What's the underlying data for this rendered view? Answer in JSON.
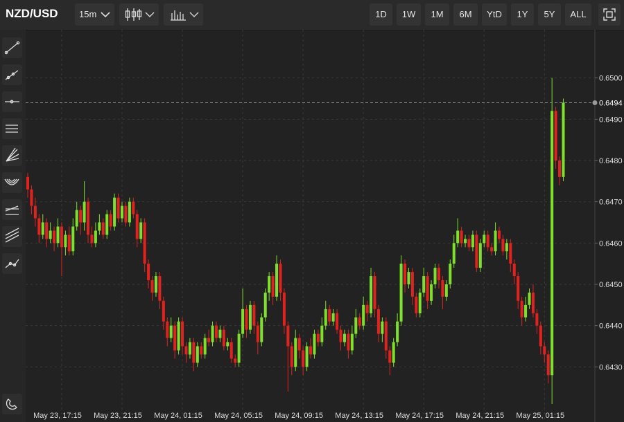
{
  "toolbar": {
    "symbol": "NZD/USD",
    "interval": "15m",
    "ranges": [
      "1D",
      "1W",
      "1M",
      "6M",
      "YtD",
      "1Y",
      "5Y",
      "ALL"
    ]
  },
  "chart_data": {
    "type": "candlestick",
    "up_color": "#7ee02c",
    "down_color": "#e0231f",
    "grid": true,
    "ylim": [
      0.642,
      0.651
    ],
    "yticks": [
      {
        "value": 0.643,
        "label": "0.6430"
      },
      {
        "value": 0.644,
        "label": "0.6440"
      },
      {
        "value": 0.645,
        "label": "0.6450"
      },
      {
        "value": 0.646,
        "label": "0.6460"
      },
      {
        "value": 0.647,
        "label": "0.6470"
      },
      {
        "value": 0.648,
        "label": "0.6480"
      },
      {
        "value": 0.649,
        "label": "0.6490"
      },
      {
        "value": 0.65,
        "label": "0.6500"
      }
    ],
    "last_price": 0.6494,
    "categories": [
      null,
      null,
      null,
      null,
      null,
      null,
      null,
      null,
      null,
      "May 23, 17:15",
      null,
      null,
      null,
      null,
      null,
      null,
      null,
      null,
      null,
      null,
      null,
      null,
      null,
      null,
      null,
      "May 23, 21:15",
      null,
      null,
      null,
      null,
      null,
      null,
      null,
      null,
      null,
      null,
      null,
      null,
      null,
      null,
      null,
      "May 24, 01:15",
      null,
      null,
      null,
      null,
      null,
      null,
      null,
      null,
      null,
      null,
      null,
      null,
      null,
      null,
      null,
      "May 24, 05:15",
      null,
      null,
      null,
      null,
      null,
      null,
      null,
      null,
      null,
      null,
      null,
      null,
      null,
      null,
      null,
      "May 24, 09:15",
      null,
      null,
      null,
      null,
      null,
      null,
      null,
      null,
      null,
      null,
      null,
      null,
      null,
      null,
      null,
      "May 24, 13:15",
      null,
      null,
      null,
      null,
      null,
      null,
      null,
      null,
      null,
      null,
      null,
      null,
      null,
      null,
      null,
      "May 24, 17:15",
      null,
      null,
      null,
      null,
      null,
      null,
      null,
      null,
      null,
      null,
      null,
      null,
      null,
      null,
      null,
      "May 24, 21:15",
      null,
      null,
      null,
      null,
      null,
      null,
      null,
      null,
      null,
      null,
      null,
      null,
      null,
      null,
      null,
      "May 25, 01:15",
      null,
      null,
      null,
      null,
      null
    ],
    "candles": [
      [
        0.6476,
        0.6477,
        0.6471,
        0.6473
      ],
      [
        0.6473,
        0.6474,
        0.6467,
        0.6469
      ],
      [
        0.6469,
        0.6471,
        0.6464,
        0.6466
      ],
      [
        0.6466,
        0.6467,
        0.646,
        0.6462
      ],
      [
        0.6462,
        0.6467,
        0.6461,
        0.6465
      ],
      [
        0.6465,
        0.6466,
        0.6459,
        0.6461
      ],
      [
        0.6461,
        0.6465,
        0.646,
        0.6463
      ],
      [
        0.6463,
        0.6464,
        0.6458,
        0.646
      ],
      [
        0.646,
        0.6466,
        0.6459,
        0.6464
      ],
      [
        0.6464,
        0.6465,
        0.6452,
        0.6459
      ],
      [
        0.6459,
        0.6463,
        0.6457,
        0.6462
      ],
      [
        0.6462,
        0.6464,
        0.6457,
        0.6458
      ],
      [
        0.6458,
        0.6466,
        0.6457,
        0.6464
      ],
      [
        0.6464,
        0.647,
        0.6463,
        0.6468
      ],
      [
        0.6468,
        0.6469,
        0.6462,
        0.6465
      ],
      [
        0.6465,
        0.6475,
        0.6463,
        0.647
      ],
      [
        0.647,
        0.6471,
        0.646,
        0.6462
      ],
      [
        0.6462,
        0.6464,
        0.6459,
        0.646
      ],
      [
        0.646,
        0.6465,
        0.6459,
        0.6463
      ],
      [
        0.6463,
        0.6467,
        0.6462,
        0.6465
      ],
      [
        0.6465,
        0.6466,
        0.6461,
        0.6462
      ],
      [
        0.6462,
        0.6468,
        0.6461,
        0.6467
      ],
      [
        0.6467,
        0.6468,
        0.6463,
        0.6464
      ],
      [
        0.6464,
        0.6472,
        0.6463,
        0.6471
      ],
      [
        0.6471,
        0.6472,
        0.6465,
        0.6466
      ],
      [
        0.6466,
        0.647,
        0.6465,
        0.6469
      ],
      [
        0.6469,
        0.647,
        0.6464,
        0.6465
      ],
      [
        0.6465,
        0.6471,
        0.6464,
        0.647
      ],
      [
        0.647,
        0.6471,
        0.6466,
        0.6467
      ],
      [
        0.6467,
        0.6468,
        0.6459,
        0.6461
      ],
      [
        0.6461,
        0.6466,
        0.646,
        0.6465
      ],
      [
        0.6465,
        0.6466,
        0.6453,
        0.6455
      ],
      [
        0.6455,
        0.6456,
        0.6449,
        0.6451
      ],
      [
        0.6451,
        0.6452,
        0.6446,
        0.6448
      ],
      [
        0.6448,
        0.6453,
        0.6447,
        0.6452
      ],
      [
        0.6452,
        0.6453,
        0.6444,
        0.6446
      ],
      [
        0.6446,
        0.6447,
        0.6439,
        0.6441
      ],
      [
        0.6441,
        0.6442,
        0.6435,
        0.6437
      ],
      [
        0.6437,
        0.6442,
        0.6436,
        0.644
      ],
      [
        0.644,
        0.6441,
        0.6432,
        0.6434
      ],
      [
        0.6434,
        0.6442,
        0.6433,
        0.6441
      ],
      [
        0.6441,
        0.6442,
        0.6433,
        0.6435
      ],
      [
        0.6435,
        0.6436,
        0.6431,
        0.6433
      ],
      [
        0.6433,
        0.6437,
        0.6432,
        0.6436
      ],
      [
        0.6436,
        0.6437,
        0.6429,
        0.6431
      ],
      [
        0.6431,
        0.6436,
        0.643,
        0.6435
      ],
      [
        0.6435,
        0.6436,
        0.6432,
        0.6433
      ],
      [
        0.6433,
        0.6438,
        0.6432,
        0.6437
      ],
      [
        0.6437,
        0.6439,
        0.6435,
        0.6436
      ],
      [
        0.6436,
        0.6441,
        0.6435,
        0.644
      ],
      [
        0.644,
        0.6441,
        0.6436,
        0.6437
      ],
      [
        0.6437,
        0.644,
        0.6436,
        0.6439
      ],
      [
        0.6439,
        0.644,
        0.6434,
        0.6435
      ],
      [
        0.6435,
        0.6437,
        0.6434,
        0.6436
      ],
      [
        0.6436,
        0.6437,
        0.6431,
        0.6432
      ],
      [
        0.6432,
        0.6433,
        0.643,
        0.6431
      ],
      [
        0.6431,
        0.6439,
        0.643,
        0.6438
      ],
      [
        0.6438,
        0.6449,
        0.6437,
        0.6444
      ],
      [
        0.6444,
        0.6445,
        0.6437,
        0.6439
      ],
      [
        0.6439,
        0.6446,
        0.6438,
        0.6445
      ],
      [
        0.6445,
        0.6446,
        0.6438,
        0.644
      ],
      [
        0.644,
        0.6441,
        0.6433,
        0.6436
      ],
      [
        0.6436,
        0.6443,
        0.6435,
        0.6442
      ],
      [
        0.6442,
        0.6449,
        0.6441,
        0.6448
      ],
      [
        0.6448,
        0.6453,
        0.6446,
        0.6452
      ],
      [
        0.6452,
        0.6453,
        0.6445,
        0.6447
      ],
      [
        0.6447,
        0.6457,
        0.6446,
        0.6455
      ],
      [
        0.6455,
        0.6456,
        0.6446,
        0.6448
      ],
      [
        0.6448,
        0.6449,
        0.6438,
        0.644
      ],
      [
        0.644,
        0.6441,
        0.6424,
        0.6435
      ],
      [
        0.6435,
        0.6436,
        0.6428,
        0.643
      ],
      [
        0.643,
        0.6439,
        0.6429,
        0.6437
      ],
      [
        0.6437,
        0.6438,
        0.6432,
        0.6434
      ],
      [
        0.6434,
        0.6435,
        0.6428,
        0.643
      ],
      [
        0.643,
        0.6436,
        0.6429,
        0.6435
      ],
      [
        0.6435,
        0.6437,
        0.6432,
        0.6433
      ],
      [
        0.6433,
        0.6439,
        0.6432,
        0.6438
      ],
      [
        0.6438,
        0.6439,
        0.6435,
        0.6436
      ],
      [
        0.6436,
        0.6442,
        0.6435,
        0.644
      ],
      [
        0.644,
        0.6446,
        0.6439,
        0.6444
      ],
      [
        0.6444,
        0.6445,
        0.644,
        0.6441
      ],
      [
        0.6441,
        0.6444,
        0.644,
        0.6443
      ],
      [
        0.6443,
        0.6444,
        0.6438,
        0.6439
      ],
      [
        0.6439,
        0.644,
        0.6434,
        0.6436
      ],
      [
        0.6436,
        0.6439,
        0.6435,
        0.6438
      ],
      [
        0.6438,
        0.6439,
        0.6432,
        0.6434
      ],
      [
        0.6434,
        0.644,
        0.6433,
        0.6438
      ],
      [
        0.6438,
        0.6444,
        0.6437,
        0.6442
      ],
      [
        0.6442,
        0.6443,
        0.6439,
        0.644
      ],
      [
        0.644,
        0.6447,
        0.6439,
        0.6445
      ],
      [
        0.6445,
        0.6446,
        0.6441,
        0.6443
      ],
      [
        0.6443,
        0.6454,
        0.6442,
        0.6452
      ],
      [
        0.6452,
        0.6453,
        0.6442,
        0.6444
      ],
      [
        0.6444,
        0.6445,
        0.6436,
        0.6438
      ],
      [
        0.6438,
        0.6442,
        0.6436,
        0.6441
      ],
      [
        0.6441,
        0.6442,
        0.6432,
        0.6434
      ],
      [
        0.6434,
        0.6435,
        0.6428,
        0.6431
      ],
      [
        0.6431,
        0.6437,
        0.643,
        0.6436
      ],
      [
        0.6436,
        0.6443,
        0.6435,
        0.6441
      ],
      [
        0.6441,
        0.6457,
        0.644,
        0.6455
      ],
      [
        0.6455,
        0.6456,
        0.6448,
        0.645
      ],
      [
        0.645,
        0.6454,
        0.6449,
        0.6453
      ],
      [
        0.6453,
        0.6454,
        0.6445,
        0.6447
      ],
      [
        0.6447,
        0.6448,
        0.6442,
        0.6443
      ],
      [
        0.6443,
        0.6449,
        0.6442,
        0.6448
      ],
      [
        0.6448,
        0.6454,
        0.6447,
        0.6452
      ],
      [
        0.6452,
        0.6453,
        0.6444,
        0.6446
      ],
      [
        0.6446,
        0.6451,
        0.6445,
        0.645
      ],
      [
        0.645,
        0.6455,
        0.6449,
        0.6454
      ],
      [
        0.6454,
        0.6455,
        0.6449,
        0.6451
      ],
      [
        0.6451,
        0.6452,
        0.6444,
        0.6447
      ],
      [
        0.6447,
        0.6451,
        0.6446,
        0.645
      ],
      [
        0.645,
        0.6456,
        0.6449,
        0.6455
      ],
      [
        0.6455,
        0.6462,
        0.6454,
        0.646
      ],
      [
        0.646,
        0.6466,
        0.6459,
        0.6463
      ],
      [
        0.6463,
        0.6464,
        0.6459,
        0.646
      ],
      [
        0.646,
        0.6462,
        0.6459,
        0.6461
      ],
      [
        0.6461,
        0.6462,
        0.6458,
        0.6459
      ],
      [
        0.6459,
        0.6463,
        0.6458,
        0.6462
      ],
      [
        0.6462,
        0.6463,
        0.6453,
        0.6454
      ],
      [
        0.6454,
        0.6461,
        0.6453,
        0.646
      ],
      [
        0.646,
        0.6463,
        0.6459,
        0.6462
      ],
      [
        0.6462,
        0.6463,
        0.6458,
        0.6459
      ],
      [
        0.6459,
        0.646,
        0.6457,
        0.6458
      ],
      [
        0.6458,
        0.6465,
        0.6457,
        0.6463
      ],
      [
        0.6463,
        0.6464,
        0.646,
        0.6461
      ],
      [
        0.6461,
        0.6462,
        0.6457,
        0.6458
      ],
      [
        0.6458,
        0.6461,
        0.6456,
        0.646
      ],
      [
        0.646,
        0.6461,
        0.6453,
        0.6455
      ],
      [
        0.6455,
        0.6456,
        0.645,
        0.6452
      ],
      [
        0.6452,
        0.6453,
        0.6444,
        0.6446
      ],
      [
        0.6446,
        0.6447,
        0.644,
        0.6442
      ],
      [
        0.6442,
        0.6447,
        0.6441,
        0.6445
      ],
      [
        0.6445,
        0.6449,
        0.6444,
        0.6448
      ],
      [
        0.6448,
        0.645,
        0.6442,
        0.6443
      ],
      [
        0.6443,
        0.6444,
        0.6438,
        0.644
      ],
      [
        0.644,
        0.6441,
        0.6433,
        0.6435
      ],
      [
        0.6435,
        0.6436,
        0.6431,
        0.6433
      ],
      [
        0.6433,
        0.6434,
        0.6426,
        0.6428
      ],
      [
        0.6428,
        0.65,
        0.6421,
        0.6492
      ],
      [
        0.6492,
        0.6493,
        0.6478,
        0.648
      ],
      [
        0.648,
        0.6481,
        0.6474,
        0.6476
      ],
      [
        0.6476,
        0.6495,
        0.6475,
        0.6494
      ]
    ]
  }
}
